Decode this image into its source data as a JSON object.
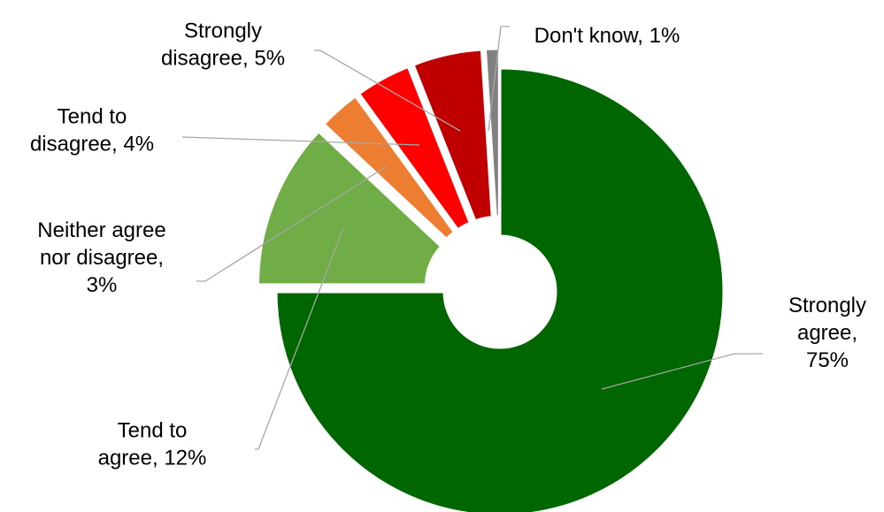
{
  "chart_data": {
    "type": "pie",
    "variant": "doughnut",
    "title": "",
    "slices": [
      {
        "category": "Strongly agree",
        "value": 75,
        "label_lines": [
          "Strongly",
          "agree,",
          "75%"
        ],
        "color": "#006600",
        "exploded": false
      },
      {
        "category": "Tend to agree",
        "value": 12,
        "label_lines": [
          "Tend to",
          "agree, 12%"
        ],
        "color": "#70ad47",
        "exploded": true
      },
      {
        "category": "Neither agree nor disagree",
        "value": 3,
        "label_lines": [
          "Neither agree",
          "nor disagree,",
          "3%"
        ],
        "color": "#ed7d31",
        "exploded": true
      },
      {
        "category": "Tend to disagree",
        "value": 4,
        "label_lines": [
          "Tend to",
          "disagree, 4%"
        ],
        "color": "#ff0000",
        "exploded": true
      },
      {
        "category": "Strongly disagree",
        "value": 5,
        "label_lines": [
          "Strongly",
          "disagree, 5%"
        ],
        "color": "#c00000",
        "exploded": true
      },
      {
        "category": "Don't know",
        "value": 1,
        "label_lines": [
          "Don't know, 1%"
        ],
        "color": "#808080",
        "exploded": true
      }
    ],
    "legend": "none",
    "data_labels": "outside with leader lines"
  }
}
